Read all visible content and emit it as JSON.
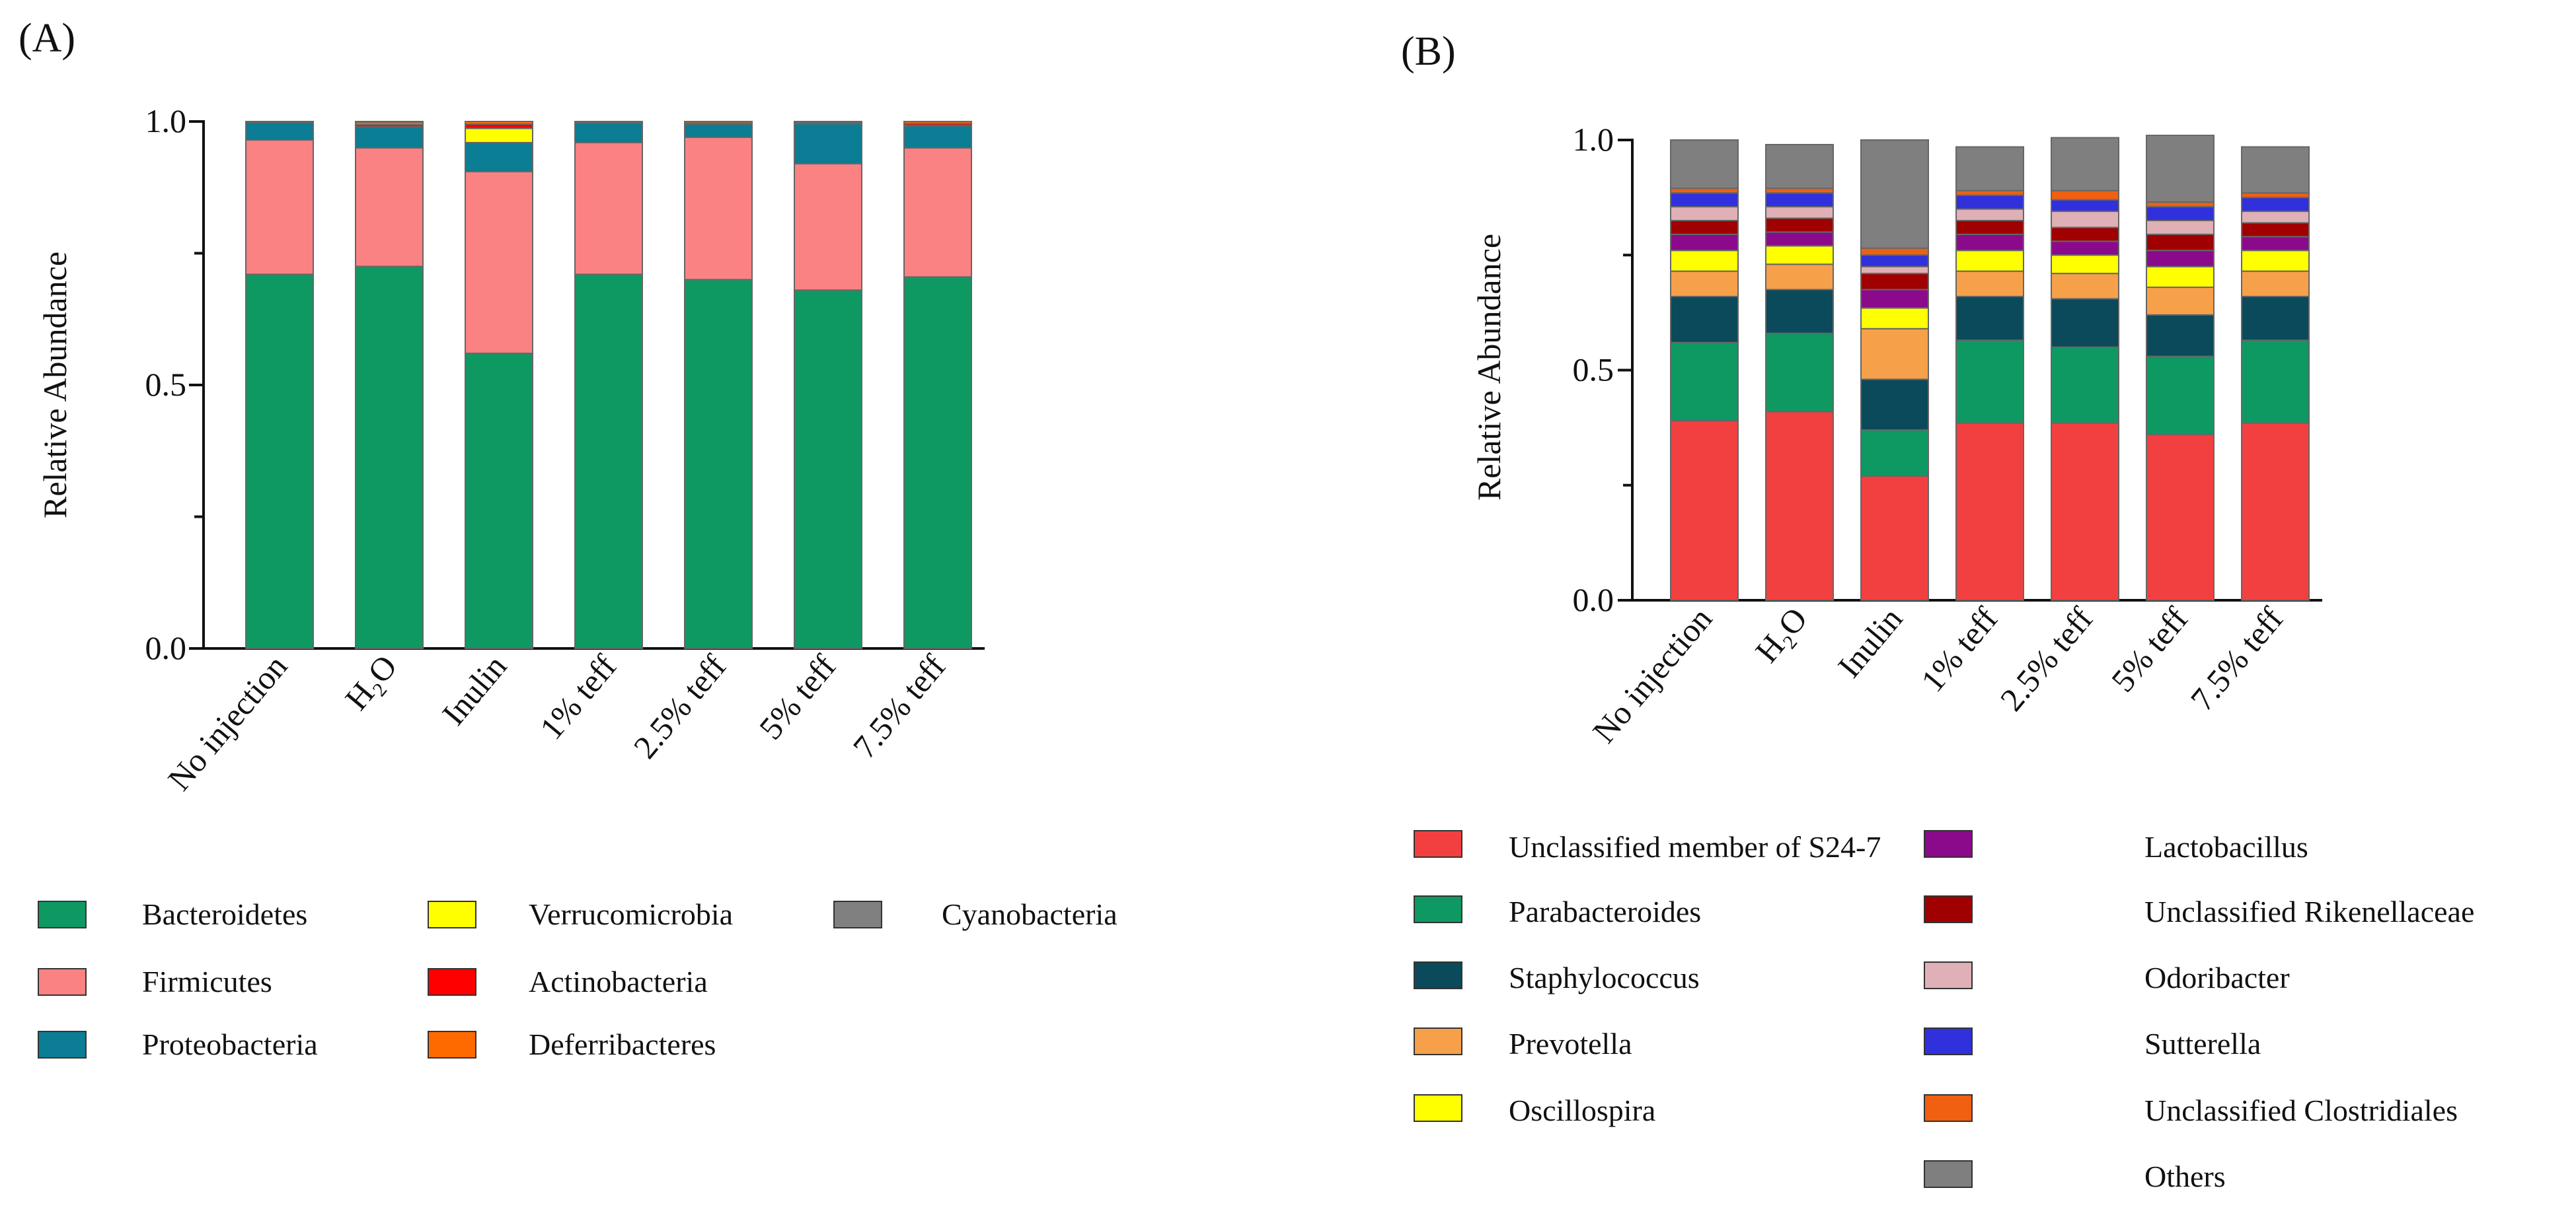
{
  "chart_data": [
    {
      "type": "bar",
      "stacked": true,
      "panel_label": "(A)",
      "ylabel": "Relative Abundance",
      "ylim": [
        0,
        1.0
      ],
      "yticks": [
        "0.0",
        "0.5",
        "1.0"
      ],
      "categories": [
        "No injection",
        "H₂O",
        "Inulin",
        "1% teff",
        "2.5% teff",
        "5% teff",
        "7.5% teff"
      ],
      "series": [
        {
          "name": "Bacteroidetes",
          "color": "#0e9963",
          "values": [
            0.71,
            0.725,
            0.56,
            0.71,
            0.7,
            0.68,
            0.705
          ]
        },
        {
          "name": "Firmicutes",
          "color": "#fa8282",
          "values": [
            0.255,
            0.225,
            0.345,
            0.25,
            0.27,
            0.24,
            0.245
          ]
        },
        {
          "name": "Proteobacteria",
          "color": "#0b7d94",
          "values": [
            0.033,
            0.04,
            0.055,
            0.037,
            0.025,
            0.076,
            0.042
          ]
        },
        {
          "name": "Verrucomicrobia",
          "color": "#ffff00",
          "values": [
            0.0,
            0.0,
            0.027,
            0.0,
            0.0,
            0.0,
            0.0
          ]
        },
        {
          "name": "Actinobacteria",
          "color": "#ff0000",
          "values": [
            0.0,
            0.004,
            0.008,
            0.001,
            0.002,
            0.002,
            0.004
          ]
        },
        {
          "name": "Deferribacteres",
          "color": "#ff6a00",
          "values": [
            0.002,
            0.005,
            0.005,
            0.002,
            0.003,
            0.002,
            0.004
          ]
        },
        {
          "name": "Cyanobacteria",
          "color": "#808080",
          "values": [
            0.0,
            0.001,
            0.0,
            0.0,
            0.0,
            0.0,
            0.0
          ]
        }
      ]
    },
    {
      "type": "bar",
      "stacked": true,
      "panel_label": "(B)",
      "ylabel": "Relative Abundance",
      "ylim": [
        0,
        1.0
      ],
      "yticks": [
        "0.0",
        "0.5",
        "1.0"
      ],
      "categories": [
        "No injection",
        "H₂O",
        "Inulin",
        "1% teff",
        "2.5% teff",
        "5% teff",
        "7.5% teff"
      ],
      "series": [
        {
          "name": "Unclassified member of S24-7",
          "color": "#f24040",
          "values": [
            0.39,
            0.41,
            0.27,
            0.385,
            0.385,
            0.36,
            0.385
          ]
        },
        {
          "name": "Parabacteroides",
          "color": "#0e9963",
          "values": [
            0.17,
            0.17,
            0.1,
            0.18,
            0.165,
            0.17,
            0.18
          ]
        },
        {
          "name": "Staphylococcus",
          "color": "#0a4a5a",
          "values": [
            0.1,
            0.095,
            0.11,
            0.095,
            0.105,
            0.09,
            0.095
          ]
        },
        {
          "name": "Prevotella",
          "color": "#f7a04a",
          "values": [
            0.055,
            0.055,
            0.11,
            0.055,
            0.055,
            0.06,
            0.055
          ]
        },
        {
          "name": "Oscillospira",
          "color": "#ffff00",
          "values": [
            0.045,
            0.04,
            0.045,
            0.045,
            0.04,
            0.045,
            0.045
          ]
        },
        {
          "name": "Lactobacillus",
          "color": "#8b0a8b",
          "values": [
            0.035,
            0.03,
            0.04,
            0.035,
            0.03,
            0.035,
            0.03
          ]
        },
        {
          "name": "Unclassified Rikenellaceae",
          "color": "#a00000",
          "values": [
            0.03,
            0.03,
            0.035,
            0.03,
            0.03,
            0.035,
            0.03
          ]
        },
        {
          "name": "Odoribacter",
          "color": "#dfb0b5",
          "values": [
            0.03,
            0.025,
            0.015,
            0.025,
            0.035,
            0.03,
            0.025
          ]
        },
        {
          "name": "Sutterella",
          "color": "#3030dd",
          "values": [
            0.03,
            0.03,
            0.025,
            0.03,
            0.025,
            0.03,
            0.03
          ]
        },
        {
          "name": "Unclassified Clostridiales",
          "color": "#f06010",
          "values": [
            0.01,
            0.01,
            0.015,
            0.01,
            0.02,
            0.01,
            0.01
          ]
        },
        {
          "name": "Others",
          "color": "#7f7f7f",
          "values": [
            0.105,
            0.095,
            0.235,
            0.095,
            0.115,
            0.145,
            0.1
          ]
        }
      ]
    }
  ],
  "legends": {
    "a": [
      [
        "Bacteroidetes",
        "Firmicutes",
        "Proteobacteria"
      ],
      [
        "Verrucomicrobia",
        "Actinobacteria",
        "Deferribacteres"
      ],
      [
        "Cyanobacteria"
      ]
    ],
    "b": [
      [
        "Unclassified member of S24-7",
        "Parabacteroides",
        "Staphylococcus",
        "Prevotella",
        "Oscillospira"
      ],
      [
        "Lactobacillus",
        "Unclassified Rikenellaceae",
        "Odoribacter",
        "Sutterella",
        "Unclassified Clostridiales",
        "Others"
      ]
    ]
  }
}
